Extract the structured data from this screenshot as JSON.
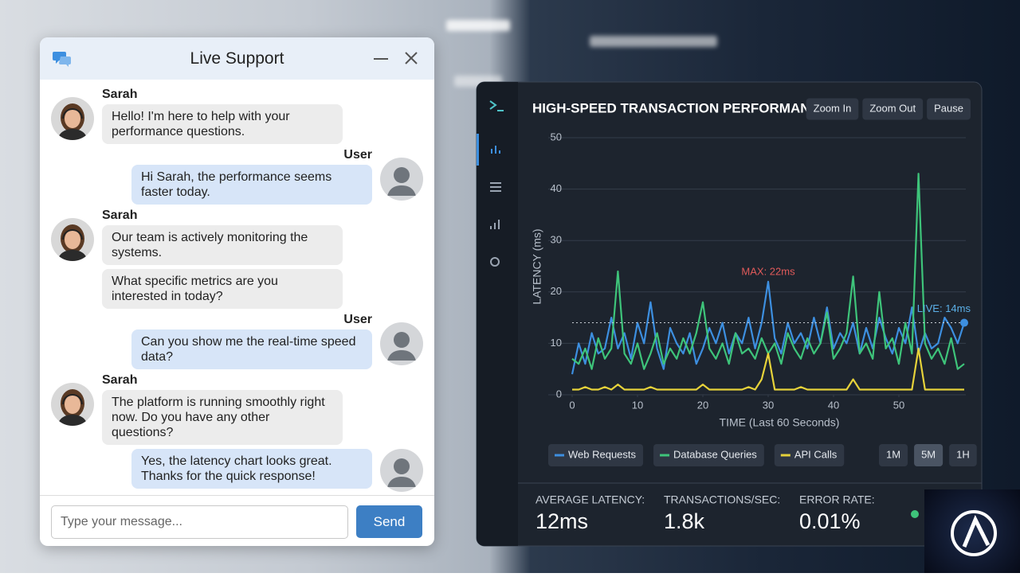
{
  "chat": {
    "title": "Live Support",
    "messages": [
      {
        "sender": "Sarah",
        "side": "left",
        "text": "Hello! I'm here to help with your performance questions."
      },
      {
        "sender": "User",
        "side": "right",
        "text": "Hi Sarah, the performance seems faster today."
      },
      {
        "sender": "Sarah",
        "side": "left",
        "text": "Our team is actively monitoring the systems."
      },
      {
        "side": "left",
        "text": "What specific metrics are you interested in today?"
      },
      {
        "sender": "User",
        "side": "right",
        "text": "Can you show me the real-time speed data?"
      },
      {
        "sender": "Sarah",
        "side": "left",
        "text": "The platform is running smoothly right now. Do you have any other questions?"
      },
      {
        "side": "right",
        "text": "Yes, the latency chart looks great. Thanks for the quick response!"
      }
    ],
    "input_placeholder": "Type your message...",
    "send": "Send"
  },
  "dashboard": {
    "buttons": [
      "Zoom In",
      "Zoom Out",
      "Pause"
    ],
    "ranges": [
      "1M",
      "5M",
      "1H"
    ],
    "active_range": "5M",
    "stats": [
      {
        "label": "AVERAGE LATENCY:",
        "value": "12ms"
      },
      {
        "label": "TRANSACTIONS/SEC:",
        "value": "1.8k"
      },
      {
        "label": "ERROR RATE:",
        "value": "0.01%"
      }
    ]
  },
  "chart_data": {
    "type": "line",
    "title": "HIGH-SPEED TRANSACTION PERFORMANCE",
    "x_label": "TIME (Last 60 Seconds)",
    "y_label": "LATENCY (ms)",
    "max_label": "MAX: 22ms",
    "live_label": "LIVE: 14ms",
    "x": [
      0,
      1,
      2,
      3,
      4,
      5,
      6,
      7,
      8,
      9,
      10,
      11,
      12,
      13,
      14,
      15,
      16,
      17,
      18,
      19,
      20,
      21,
      22,
      23,
      24,
      25,
      26,
      27,
      28,
      29,
      30,
      31,
      32,
      33,
      34,
      35,
      36,
      37,
      38,
      39,
      40,
      41,
      42,
      43,
      44,
      45,
      46,
      47,
      48,
      49,
      50,
      51,
      52,
      53,
      54,
      55,
      56,
      57,
      58,
      59,
      60
    ],
    "series": [
      {
        "name": "Web Requests",
        "color": "#3d8fe0",
        "values": [
          4,
          10,
          6,
          12,
          8,
          9,
          15,
          9,
          12,
          7,
          14,
          10,
          18,
          9,
          5,
          13,
          10,
          8,
          12,
          6,
          9,
          13,
          10,
          14,
          8,
          12,
          10,
          15,
          9,
          14,
          22,
          11,
          8,
          14,
          10,
          12,
          9,
          15,
          10,
          17,
          9,
          12,
          10,
          14,
          8,
          13,
          9,
          15,
          11,
          8,
          13,
          10,
          17,
          8,
          12,
          9,
          10,
          15,
          13,
          10,
          14
        ]
      },
      {
        "name": "Database Queries",
        "color": "#3ec47a",
        "values": [
          7,
          6,
          9,
          5,
          11,
          7,
          9,
          24,
          8,
          6,
          10,
          5,
          8,
          12,
          6,
          9,
          7,
          11,
          8,
          12,
          18,
          9,
          7,
          10,
          6,
          12,
          8,
          9,
          7,
          11,
          8,
          10,
          6,
          12,
          9,
          7,
          11,
          8,
          10,
          16,
          7,
          9,
          12,
          23,
          8,
          10,
          7,
          20,
          9,
          11,
          6,
          14,
          8,
          43,
          10,
          7,
          9,
          6,
          11,
          5,
          6
        ]
      },
      {
        "name": "API Calls",
        "color": "#e6d23a",
        "values": [
          1,
          1,
          1.5,
          1,
          1,
          1.5,
          1,
          2,
          1,
          1,
          1,
          1,
          1.5,
          1,
          1,
          1,
          1,
          1,
          1,
          1,
          2,
          1,
          1,
          1,
          1,
          1,
          1,
          1.5,
          1,
          3,
          8,
          1,
          1,
          1,
          1,
          1.5,
          1,
          1,
          1,
          1,
          1,
          1,
          1,
          3,
          1,
          1,
          1,
          1,
          1,
          1,
          1,
          1,
          1,
          9,
          1,
          1,
          1,
          1,
          1,
          1,
          1
        ]
      }
    ],
    "xlim": [
      0,
      60
    ],
    "xticks": [
      0,
      10,
      20,
      30,
      40,
      50
    ],
    "ylim": [
      0,
      50
    ],
    "yticks": [
      0,
      10,
      20,
      30,
      40,
      50
    ],
    "grid": true
  }
}
